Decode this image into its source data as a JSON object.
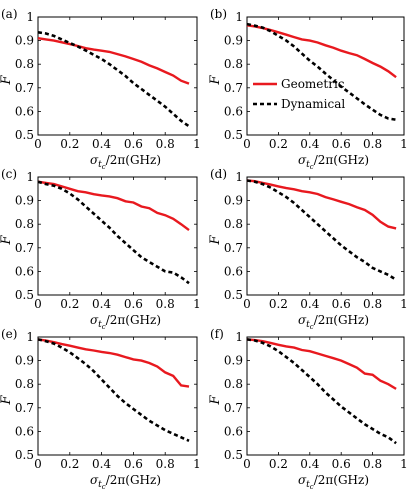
{
  "chart_data": [
    {
      "type": "line",
      "panel_label": "(a)",
      "xlabel_main": "σ",
      "xlabel_sub": "t",
      "xlabel_subsub": "c",
      "xlabel_rest": "/2π(GHz)",
      "ylabel": "F",
      "xlim": [
        0,
        1
      ],
      "ylim": [
        0.5,
        1
      ],
      "xticks": [
        "0",
        "0.2",
        "0.4",
        "0.6",
        "0.8",
        "1"
      ],
      "yticks": [
        "0.5",
        "0.6",
        "0.7",
        "0.8",
        "0.9",
        "1"
      ],
      "legend": null,
      "series": [
        {
          "name": "Geometric",
          "color": "#e8191f",
          "style": "solid",
          "x": [
            0,
            0.05,
            0.1,
            0.15,
            0.2,
            0.25,
            0.3,
            0.35,
            0.4,
            0.45,
            0.5,
            0.55,
            0.6,
            0.65,
            0.7,
            0.75,
            0.8,
            0.85,
            0.9,
            0.95
          ],
          "y": [
            0.91,
            0.905,
            0.9,
            0.893,
            0.885,
            0.877,
            0.868,
            0.862,
            0.857,
            0.852,
            0.843,
            0.833,
            0.822,
            0.81,
            0.795,
            0.782,
            0.767,
            0.752,
            0.73,
            0.718
          ]
        },
        {
          "name": "Dynamical",
          "color": "#000000",
          "style": "dashed",
          "x": [
            0,
            0.05,
            0.1,
            0.15,
            0.2,
            0.25,
            0.3,
            0.35,
            0.4,
            0.45,
            0.5,
            0.55,
            0.6,
            0.65,
            0.7,
            0.75,
            0.8,
            0.85,
            0.9,
            0.95
          ],
          "y": [
            0.935,
            0.93,
            0.92,
            0.905,
            0.89,
            0.875,
            0.858,
            0.84,
            0.822,
            0.8,
            0.775,
            0.75,
            0.72,
            0.695,
            0.67,
            0.645,
            0.62,
            0.59,
            0.56,
            0.537
          ]
        }
      ]
    },
    {
      "type": "line",
      "panel_label": "(b)",
      "xlabel_main": "σ",
      "xlabel_sub": "t",
      "xlabel_subsub": "c",
      "xlabel_rest": "/2π(GHz)",
      "ylabel": "F",
      "xlim": [
        0,
        1
      ],
      "ylim": [
        0.5,
        1
      ],
      "xticks": [
        "0",
        "0.2",
        "0.4",
        "0.6",
        "0.8",
        "1"
      ],
      "yticks": [
        "0.5",
        "0.6",
        "0.7",
        "0.8",
        "0.9",
        "1"
      ],
      "legend": {
        "entries": [
          "Geometric",
          "Dynamical"
        ]
      },
      "series": [
        {
          "name": "Geometric",
          "color": "#e8191f",
          "style": "solid",
          "x": [
            0,
            0.05,
            0.1,
            0.15,
            0.2,
            0.25,
            0.3,
            0.35,
            0.4,
            0.45,
            0.5,
            0.55,
            0.6,
            0.65,
            0.7,
            0.75,
            0.8,
            0.85,
            0.9,
            0.95
          ],
          "y": [
            0.965,
            0.96,
            0.953,
            0.945,
            0.935,
            0.925,
            0.915,
            0.905,
            0.9,
            0.892,
            0.88,
            0.87,
            0.857,
            0.847,
            0.838,
            0.822,
            0.805,
            0.79,
            0.77,
            0.745
          ]
        },
        {
          "name": "Dynamical",
          "color": "#000000",
          "style": "dashed",
          "x": [
            0,
            0.05,
            0.1,
            0.15,
            0.2,
            0.25,
            0.3,
            0.35,
            0.4,
            0.45,
            0.5,
            0.55,
            0.6,
            0.65,
            0.7,
            0.75,
            0.8,
            0.85,
            0.9,
            0.95
          ],
          "y": [
            0.97,
            0.963,
            0.955,
            0.94,
            0.92,
            0.9,
            0.875,
            0.845,
            0.815,
            0.79,
            0.76,
            0.732,
            0.705,
            0.68,
            0.655,
            0.63,
            0.607,
            0.585,
            0.57,
            0.565
          ]
        }
      ]
    },
    {
      "type": "line",
      "panel_label": "(c)",
      "xlabel_main": "σ",
      "xlabel_sub": "t",
      "xlabel_subsub": "c",
      "xlabel_rest": "/2π(GHz)",
      "ylabel": "F",
      "xlim": [
        0,
        1
      ],
      "ylim": [
        0.5,
        1
      ],
      "xticks": [
        "0",
        "0.2",
        "0.4",
        "0.6",
        "0.8",
        "1"
      ],
      "yticks": [
        "0.5",
        "0.6",
        "0.7",
        "0.8",
        "0.9",
        "1"
      ],
      "legend": null,
      "series": [
        {
          "name": "Geometric",
          "color": "#e8191f",
          "style": "solid",
          "x": [
            0,
            0.05,
            0.1,
            0.15,
            0.2,
            0.25,
            0.3,
            0.35,
            0.4,
            0.45,
            0.5,
            0.55,
            0.6,
            0.65,
            0.7,
            0.75,
            0.8,
            0.85,
            0.9,
            0.95
          ],
          "y": [
            0.98,
            0.975,
            0.97,
            0.96,
            0.95,
            0.94,
            0.935,
            0.927,
            0.922,
            0.918,
            0.91,
            0.897,
            0.892,
            0.875,
            0.868,
            0.848,
            0.838,
            0.823,
            0.8,
            0.775
          ]
        },
        {
          "name": "Dynamical",
          "color": "#000000",
          "style": "dashed",
          "x": [
            0,
            0.05,
            0.1,
            0.15,
            0.2,
            0.25,
            0.3,
            0.35,
            0.4,
            0.45,
            0.5,
            0.55,
            0.6,
            0.65,
            0.7,
            0.75,
            0.8,
            0.85,
            0.9,
            0.95
          ],
          "y": [
            0.98,
            0.97,
            0.963,
            0.95,
            0.93,
            0.905,
            0.875,
            0.845,
            0.815,
            0.785,
            0.75,
            0.72,
            0.69,
            0.66,
            0.64,
            0.62,
            0.6,
            0.595,
            0.575,
            0.55
          ]
        }
      ]
    },
    {
      "type": "line",
      "panel_label": "(d)",
      "xlabel_main": "σ",
      "xlabel_sub": "t",
      "xlabel_subsub": "c",
      "xlabel_rest": "/2π(GHz)",
      "ylabel": "F",
      "xlim": [
        0,
        1
      ],
      "ylim": [
        0.5,
        1
      ],
      "xticks": [
        "0",
        "0.2",
        "0.4",
        "0.6",
        "0.8",
        "1"
      ],
      "yticks": [
        "0.5",
        "0.6",
        "0.7",
        "0.8",
        "0.9",
        "1"
      ],
      "legend": null,
      "series": [
        {
          "name": "Geometric",
          "color": "#e8191f",
          "style": "solid",
          "x": [
            0,
            0.05,
            0.1,
            0.15,
            0.2,
            0.25,
            0.3,
            0.35,
            0.4,
            0.45,
            0.5,
            0.55,
            0.6,
            0.65,
            0.7,
            0.75,
            0.8,
            0.85,
            0.9,
            0.95
          ],
          "y": [
            0.985,
            0.982,
            0.975,
            0.968,
            0.96,
            0.953,
            0.948,
            0.94,
            0.935,
            0.928,
            0.915,
            0.905,
            0.895,
            0.885,
            0.872,
            0.86,
            0.84,
            0.81,
            0.79,
            0.782
          ]
        },
        {
          "name": "Dynamical",
          "color": "#000000",
          "style": "dashed",
          "x": [
            0,
            0.05,
            0.1,
            0.15,
            0.2,
            0.25,
            0.3,
            0.35,
            0.4,
            0.45,
            0.5,
            0.55,
            0.6,
            0.65,
            0.7,
            0.75,
            0.8,
            0.85,
            0.9,
            0.95
          ],
          "y": [
            0.985,
            0.98,
            0.97,
            0.955,
            0.935,
            0.915,
            0.89,
            0.86,
            0.83,
            0.8,
            0.77,
            0.74,
            0.71,
            0.685,
            0.66,
            0.64,
            0.615,
            0.6,
            0.585,
            0.565
          ]
        }
      ]
    },
    {
      "type": "line",
      "panel_label": "(e)",
      "xlabel_main": "σ",
      "xlabel_sub": "t",
      "xlabel_subsub": "c",
      "xlabel_rest": "/2π(GHz)",
      "ylabel": "F",
      "xlim": [
        0,
        1
      ],
      "ylim": [
        0.5,
        1
      ],
      "xticks": [
        "0",
        "0.2",
        "0.4",
        "0.6",
        "0.8",
        "1"
      ],
      "yticks": [
        "0.5",
        "0.6",
        "0.7",
        "0.8",
        "0.9",
        "1"
      ],
      "legend": null,
      "series": [
        {
          "name": "Geometric",
          "color": "#e8191f",
          "style": "solid",
          "x": [
            0,
            0.05,
            0.1,
            0.15,
            0.2,
            0.25,
            0.3,
            0.35,
            0.4,
            0.45,
            0.5,
            0.55,
            0.6,
            0.65,
            0.7,
            0.75,
            0.8,
            0.85,
            0.9,
            0.95
          ],
          "y": [
            0.99,
            0.985,
            0.978,
            0.97,
            0.963,
            0.955,
            0.948,
            0.943,
            0.937,
            0.932,
            0.925,
            0.915,
            0.905,
            0.9,
            0.89,
            0.875,
            0.85,
            0.835,
            0.795,
            0.79
          ]
        },
        {
          "name": "Dynamical",
          "color": "#000000",
          "style": "dashed",
          "x": [
            0,
            0.05,
            0.1,
            0.15,
            0.2,
            0.25,
            0.3,
            0.35,
            0.4,
            0.45,
            0.5,
            0.55,
            0.6,
            0.65,
            0.7,
            0.75,
            0.8,
            0.85,
            0.9,
            0.95
          ],
          "y": [
            0.99,
            0.982,
            0.972,
            0.955,
            0.935,
            0.91,
            0.885,
            0.855,
            0.82,
            0.785,
            0.75,
            0.72,
            0.695,
            0.67,
            0.645,
            0.625,
            0.605,
            0.59,
            0.575,
            0.56
          ]
        }
      ]
    },
    {
      "type": "line",
      "panel_label": "(f)",
      "xlabel_main": "σ",
      "xlabel_sub": "t",
      "xlabel_subsub": "c",
      "xlabel_rest": "/2π(GHz)",
      "ylabel": "F",
      "xlim": [
        0,
        1
      ],
      "ylim": [
        0.5,
        1
      ],
      "xticks": [
        "0",
        "0.2",
        "0.4",
        "0.6",
        "0.8",
        "1"
      ],
      "yticks": [
        "0.5",
        "0.6",
        "0.7",
        "0.8",
        "0.9",
        "1"
      ],
      "legend": null,
      "series": [
        {
          "name": "Geometric",
          "color": "#e8191f",
          "style": "solid",
          "x": [
            0,
            0.05,
            0.1,
            0.15,
            0.2,
            0.25,
            0.3,
            0.35,
            0.4,
            0.45,
            0.5,
            0.55,
            0.6,
            0.65,
            0.7,
            0.75,
            0.8,
            0.85,
            0.9,
            0.95
          ],
          "y": [
            0.99,
            0.987,
            0.982,
            0.975,
            0.967,
            0.96,
            0.955,
            0.945,
            0.94,
            0.93,
            0.92,
            0.91,
            0.9,
            0.885,
            0.87,
            0.845,
            0.84,
            0.815,
            0.8,
            0.78
          ]
        },
        {
          "name": "Dynamical",
          "color": "#000000",
          "style": "dashed",
          "x": [
            0,
            0.05,
            0.1,
            0.15,
            0.2,
            0.25,
            0.3,
            0.35,
            0.4,
            0.45,
            0.5,
            0.55,
            0.6,
            0.65,
            0.7,
            0.75,
            0.8,
            0.85,
            0.9,
            0.95
          ],
          "y": [
            0.99,
            0.985,
            0.975,
            0.96,
            0.94,
            0.915,
            0.89,
            0.86,
            0.83,
            0.8,
            0.765,
            0.735,
            0.705,
            0.68,
            0.655,
            0.63,
            0.61,
            0.59,
            0.575,
            0.55
          ]
        }
      ]
    }
  ]
}
